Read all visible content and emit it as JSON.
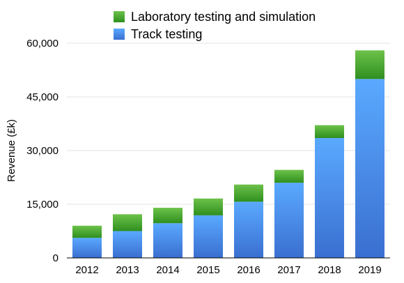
{
  "chart_data": {
    "type": "bar",
    "stacked": true,
    "categories": [
      "2012",
      "2013",
      "2014",
      "2015",
      "2016",
      "2017",
      "2018",
      "2019"
    ],
    "series": [
      {
        "name": "Track testing",
        "values": [
          5600,
          7500,
          9700,
          11900,
          15700,
          21000,
          33500,
          50000
        ],
        "color_top": "#5aa9ff",
        "color_bottom": "#3a6fd0"
      },
      {
        "name": "Laboratory testing and simulation",
        "values": [
          3400,
          4700,
          4300,
          4700,
          4800,
          3600,
          3600,
          8000
        ],
        "color_top": "#6cc24a",
        "color_bottom": "#2f8f1f"
      }
    ],
    "xlabel": "",
    "ylabel": "Revenue (£k)",
    "ylim": [
      0,
      60000
    ],
    "yticks": [
      0,
      15000,
      30000,
      45000,
      60000
    ],
    "ytick_labels": [
      "0",
      "15,000",
      "30,000",
      "45,000",
      "60,000"
    ],
    "grid": true,
    "legend_position": "top"
  }
}
